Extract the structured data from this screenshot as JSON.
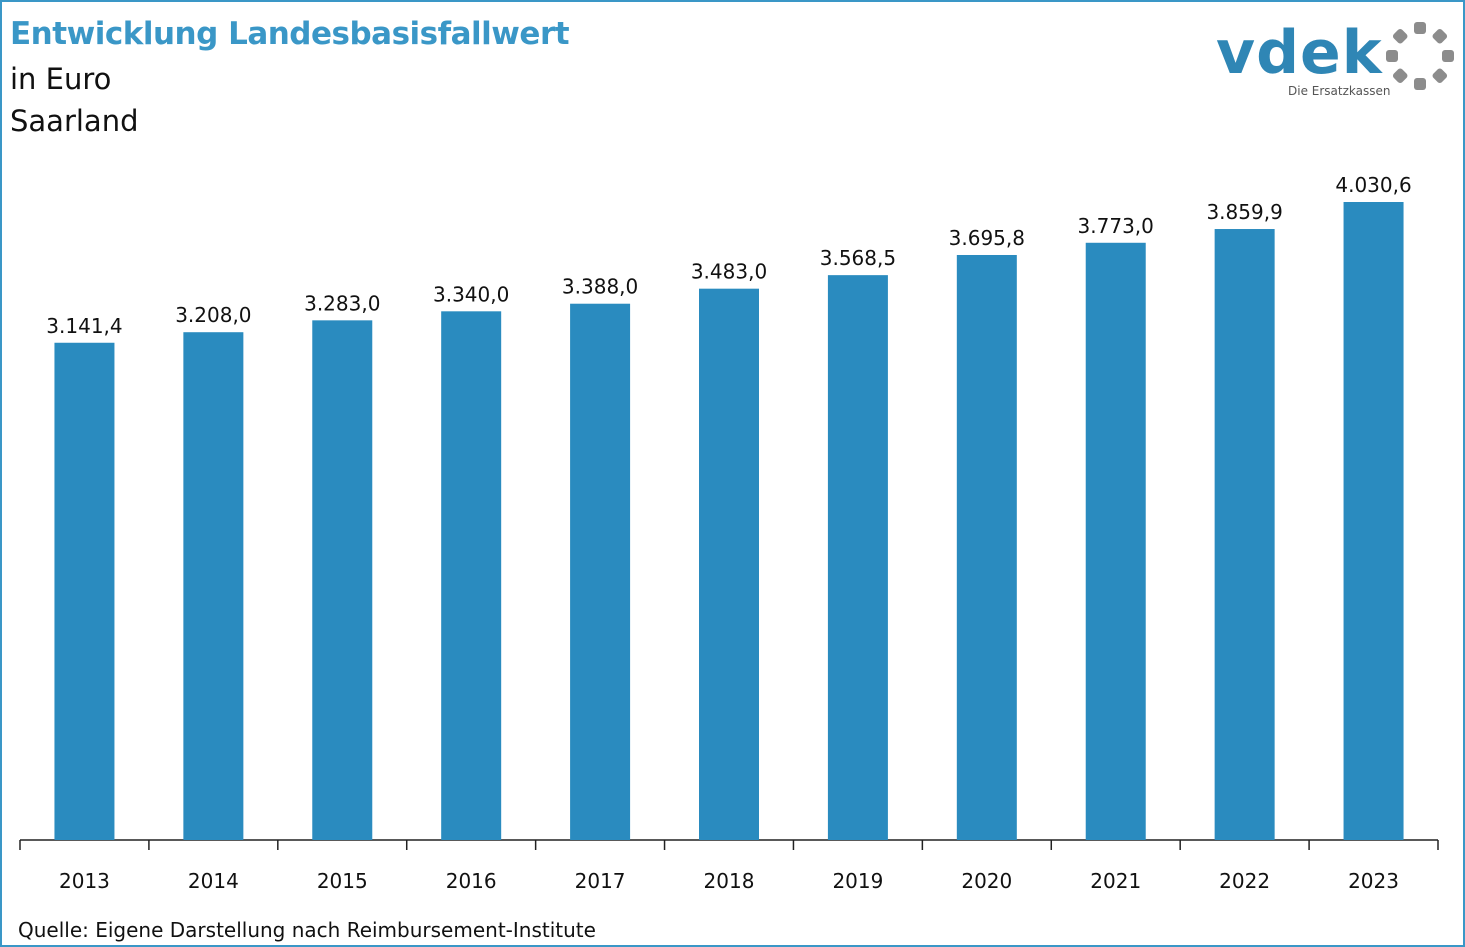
{
  "header": {
    "title": "Entwicklung Landesbasisfallwert",
    "subtitle_unit": "in Euro",
    "subtitle_region": "Saarland"
  },
  "logo": {
    "wordmark": "vdek",
    "tagline": "Die Ersatzkassen",
    "ring_icon": "dotted-ring-icon"
  },
  "colors": {
    "bar": "#2a8bbf",
    "title": "#3a97c7",
    "frame": "#3a97c7"
  },
  "chart_data": {
    "type": "bar",
    "title": "Entwicklung Landesbasisfallwert",
    "xlabel": "",
    "ylabel": "",
    "categories": [
      "2013",
      "2014",
      "2015",
      "2016",
      "2017",
      "2018",
      "2019",
      "2020",
      "2021",
      "2022",
      "2023"
    ],
    "values": [
      3141.4,
      3208.0,
      3283.0,
      3340.0,
      3388.0,
      3483.0,
      3568.5,
      3695.8,
      3773.0,
      3859.9,
      4030.6
    ],
    "value_labels": [
      "3.141,4",
      "3.208,0",
      "3.283,0",
      "3.340,0",
      "3.388,0",
      "3.483,0",
      "3.568,5",
      "3.695,8",
      "3.773,0",
      "3.859,9",
      "4.030,6"
    ],
    "ylim": [
      0,
      4030.6
    ],
    "grid": false,
    "legend": "none"
  },
  "footer": {
    "source": "Quelle: Eigene Darstellung nach Reimbursement-Institute"
  }
}
